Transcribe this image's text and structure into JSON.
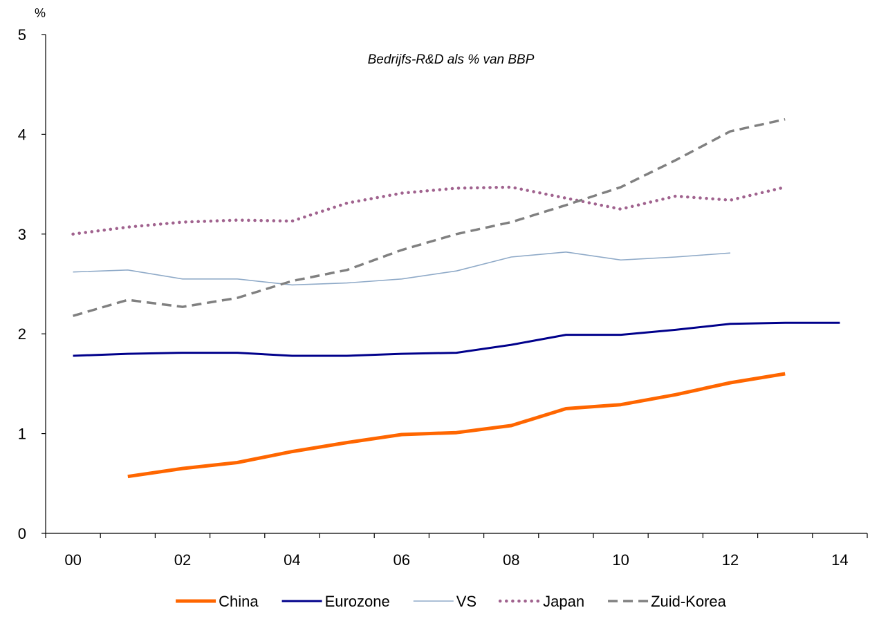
{
  "chart_data": {
    "type": "line",
    "subtitle": "Bedrijfs-R&D als % van BBP",
    "y_unit": "%",
    "x": [
      2000,
      2001,
      2002,
      2003,
      2004,
      2005,
      2006,
      2007,
      2008,
      2009,
      2010,
      2011,
      2012,
      2013,
      2014
    ],
    "x_tick_labels": [
      "00",
      "02",
      "04",
      "06",
      "08",
      "10",
      "12",
      "14"
    ],
    "x_tick_values": [
      2000,
      2002,
      2004,
      2006,
      2008,
      2010,
      2012,
      2014
    ],
    "ylim": [
      0,
      5
    ],
    "y_ticks": [
      0,
      1,
      2,
      3,
      4,
      5
    ],
    "grid": false,
    "legend_position": "bottom",
    "series": [
      {
        "name": "China",
        "color": "#ff6600",
        "style": "thick",
        "values": [
          null,
          0.57,
          0.65,
          0.71,
          0.82,
          0.91,
          0.99,
          1.01,
          1.08,
          1.25,
          1.29,
          1.39,
          1.51,
          1.6,
          null
        ]
      },
      {
        "name": "Eurozone",
        "color": "#00008b",
        "style": "solid",
        "values": [
          1.78,
          1.8,
          1.81,
          1.81,
          1.78,
          1.78,
          1.8,
          1.81,
          1.89,
          1.99,
          1.99,
          2.04,
          2.1,
          2.11,
          2.11
        ]
      },
      {
        "name": "VS",
        "color": "#8faac8",
        "style": "thin",
        "values": [
          2.62,
          2.64,
          2.55,
          2.55,
          2.49,
          2.51,
          2.55,
          2.63,
          2.77,
          2.82,
          2.74,
          2.77,
          2.81,
          null,
          null
        ]
      },
      {
        "name": "Japan",
        "color": "#a0628e",
        "style": "dotted",
        "values": [
          3.0,
          3.07,
          3.12,
          3.14,
          3.13,
          3.31,
          3.41,
          3.46,
          3.47,
          3.36,
          3.25,
          3.38,
          3.34,
          3.47,
          null
        ]
      },
      {
        "name": "Zuid-Korea",
        "color": "#808080",
        "style": "dashed",
        "values": [
          2.18,
          2.34,
          2.27,
          2.36,
          2.53,
          2.64,
          2.84,
          3.0,
          3.12,
          3.29,
          3.47,
          3.74,
          4.03,
          4.15,
          null
        ]
      }
    ]
  }
}
